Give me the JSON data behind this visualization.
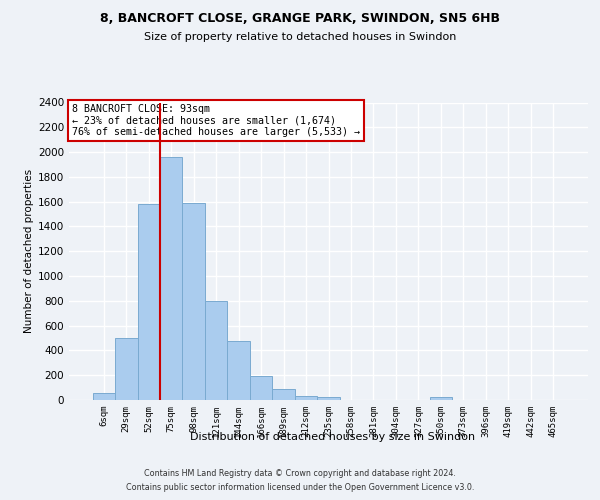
{
  "title1": "8, BANCROFT CLOSE, GRANGE PARK, SWINDON, SN5 6HB",
  "title2": "Size of property relative to detached houses in Swindon",
  "xlabel": "Distribution of detached houses by size in Swindon",
  "ylabel": "Number of detached properties",
  "footnote1": "Contains HM Land Registry data © Crown copyright and database right 2024.",
  "footnote2": "Contains public sector information licensed under the Open Government Licence v3.0.",
  "categories": [
    "6sqm",
    "29sqm",
    "52sqm",
    "75sqm",
    "98sqm",
    "121sqm",
    "144sqm",
    "166sqm",
    "189sqm",
    "212sqm",
    "235sqm",
    "258sqm",
    "281sqm",
    "304sqm",
    "327sqm",
    "350sqm",
    "373sqm",
    "396sqm",
    "419sqm",
    "442sqm",
    "465sqm"
  ],
  "values": [
    60,
    500,
    1580,
    1960,
    1590,
    800,
    480,
    195,
    90,
    35,
    25,
    0,
    0,
    0,
    0,
    25,
    0,
    0,
    0,
    0,
    0
  ],
  "bar_color": "#aaccee",
  "bar_edge_color": "#7aaad0",
  "vline_x": 2.5,
  "annotation_line1": "8 BANCROFT CLOSE: 93sqm",
  "annotation_line2": "← 23% of detached houses are smaller (1,674)",
  "annotation_line3": "76% of semi-detached houses are larger (5,533) →",
  "annotation_box_facecolor": "#ffffff",
  "annotation_box_edgecolor": "#cc0000",
  "vline_color": "#cc0000",
  "background_color": "#eef2f7",
  "ylim": [
    0,
    2400
  ],
  "yticks": [
    0,
    200,
    400,
    600,
    800,
    1000,
    1200,
    1400,
    1600,
    1800,
    2000,
    2200,
    2400
  ]
}
